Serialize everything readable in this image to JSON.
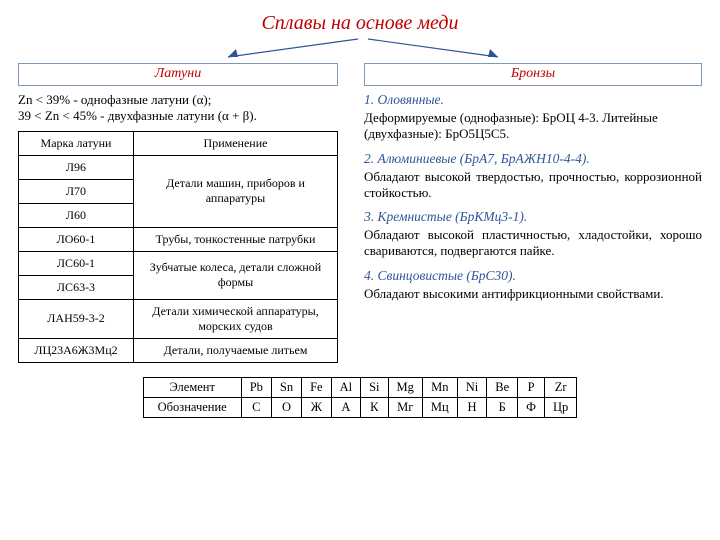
{
  "title": "Сплавы на основе меди",
  "arrow_color": "#2f5496",
  "left": {
    "heading": "Латуни",
    "intro1": "Zn < 39% - однофазные латуни (α);",
    "intro2": "39 < Zn < 45% - двухфазные латуни (α + β).",
    "table": {
      "col1": "Марка латуни",
      "col2": "Применение",
      "groups": [
        {
          "marks": [
            "Л96",
            "Л70",
            "Л60"
          ],
          "use": "Детали машин, приборов и аппаратуры"
        },
        {
          "marks": [
            "ЛО60-1"
          ],
          "use": "Трубы, тонкостенные патрубки"
        },
        {
          "marks": [
            "ЛС60-1",
            "ЛС63-3"
          ],
          "use": "Зубчатые колеса, детали сложной формы"
        },
        {
          "marks": [
            "ЛАН59-3-2"
          ],
          "use": "Детали химической аппаратуры, морских судов"
        },
        {
          "marks": [
            "ЛЦ23А6Ж3Мц2"
          ],
          "use": "Детали, получаемые литьем"
        }
      ]
    }
  },
  "right": {
    "heading": "Бронзы",
    "items": [
      {
        "h": "1. Оловянные.",
        "t": "Деформируемые (однофазные): БрОЦ 4-3. Литейные (двухфазные): БрО5Ц5С5.",
        "justify": false
      },
      {
        "h": "2. Алюминиевые (БрА7, БрАЖН10-4-4).",
        "t": "Обладают высокой твердостью, прочностью, коррозионной стойкостью.",
        "justify": true
      },
      {
        "h": "3. Кремнистые (БрКМц3-1).",
        "t": "Обладают высокой пластичностью, хладостойки, хорошо свариваются, подвергаются пайке.",
        "justify": true
      },
      {
        "h": "4. Свинцовистые (БрС30).",
        "t": "Обладают высокими антифрикционными свойствами.",
        "justify": false
      }
    ]
  },
  "elem_table": {
    "row1_label": "Элемент",
    "row2_label": "Обозначение",
    "row1": [
      "Pb",
      "Sn",
      "Fe",
      "Al",
      "Si",
      "Mg",
      "Mn",
      "Ni",
      "Be",
      "P",
      "Zr"
    ],
    "row2": [
      "С",
      "О",
      "Ж",
      "А",
      "К",
      "Мг",
      "Мц",
      "Н",
      "Б",
      "Ф",
      "Цр"
    ]
  }
}
